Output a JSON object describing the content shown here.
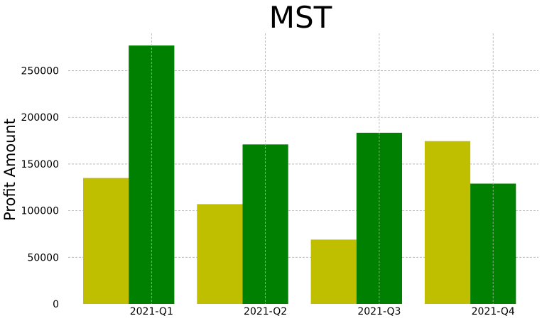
{
  "chart_data": {
    "type": "bar",
    "title": "MST",
    "xlabel": "",
    "ylabel": "Profit Amount",
    "categories": [
      "2021-Q1",
      "2021-Q2",
      "2021-Q3",
      "2021-Q4"
    ],
    "series": [
      {
        "values": [
          135000,
          107000,
          69000,
          174500
        ],
        "color": "#bfbf00"
      },
      {
        "values": [
          277000,
          171000,
          183500,
          129000
        ],
        "color": "#008000"
      }
    ],
    "yticks": [
      "0",
      "50000",
      "100000",
      "150000",
      "200000",
      "250000"
    ],
    "ylim": [
      0,
      290000
    ],
    "grid": true,
    "legend": "none"
  }
}
